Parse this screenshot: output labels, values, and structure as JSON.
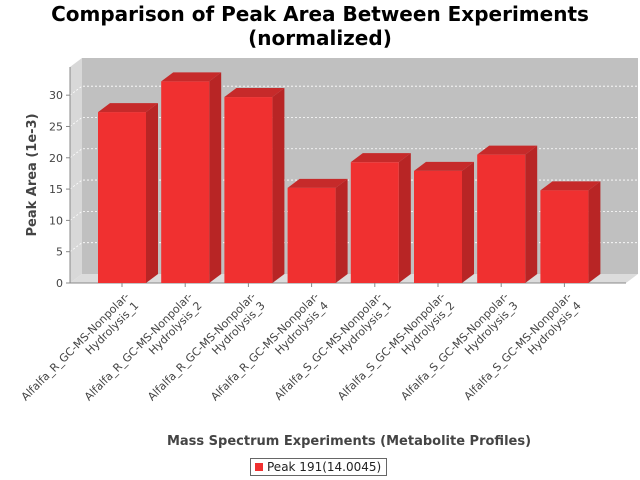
{
  "title_line1": "Comparison of Peak Area Between Experiments",
  "title_line2": "(normalized)",
  "colors": {
    "bar_front": "#f03030",
    "bar_side": "#b82525",
    "bar_top": "#c62a2a",
    "plot_bg": "#c0c0c0",
    "plot_wall": "#d8d8d8",
    "plot_floor": "#dcdcdc"
  },
  "chart_data": {
    "type": "bar",
    "xlabel": "Mass Spectrum Experiments (Metabolite Profiles)",
    "ylabel": "Peak Area (1e-3)",
    "ylim": [
      0,
      34.5
    ],
    "yticks": [
      0,
      5,
      10,
      15,
      20,
      25,
      30
    ],
    "grid": true,
    "legend_position": "bottom-center",
    "categories": [
      [
        "Alfalfa_R_GC-MS-Nonpolar-",
        "Hydrolysis_1"
      ],
      [
        "Alfalfa_R_GC-MS-Nonpolar-",
        "Hydrolysis_2"
      ],
      [
        "Alfalfa_R_GC-MS-Nonpolar-",
        "Hydrolysis_3"
      ],
      [
        "Alfalfa_R_GC-MS-Nonpolar-",
        "Hydrolysis_4"
      ],
      [
        "Alfalfa_S_GC-MS-Nonpolar-",
        "Hydrolysis_1"
      ],
      [
        "Alfalfa_S_GC-MS-Nonpolar-",
        "Hydrolysis_2"
      ],
      [
        "Alfalfa_S_GC-MS-Nonpolar-",
        "Hydrolysis_3"
      ],
      [
        "Alfalfa_S_GC-MS-Nonpolar-",
        "Hydrolysis_4"
      ]
    ],
    "series": [
      {
        "name": "Peak 191(14.0045)",
        "values": [
          27.3,
          32.2,
          29.7,
          15.2,
          19.3,
          17.9,
          20.5,
          14.8
        ]
      }
    ]
  }
}
